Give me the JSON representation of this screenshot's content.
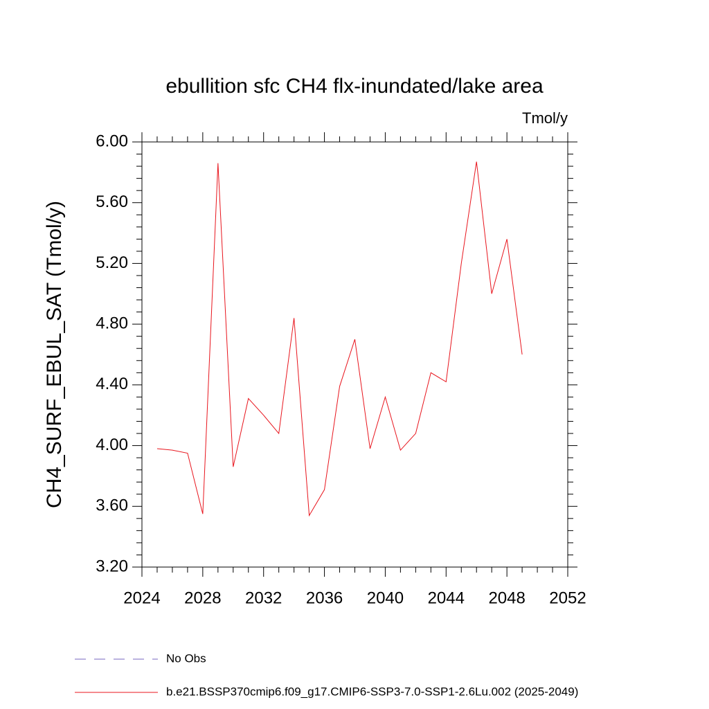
{
  "chart_data": {
    "type": "line",
    "title": "ebullition sfc CH4 flx-inundated/lake area",
    "subtitle": "Tmol/y",
    "y_label": "CH4_SURF_EBUL_SAT  (Tmol/y)",
    "x": [
      2025,
      2026,
      2027,
      2028,
      2029,
      2030,
      2031,
      2032,
      2033,
      2034,
      2035,
      2036,
      2037,
      2038,
      2039,
      2040,
      2041,
      2042,
      2043,
      2044,
      2045,
      2046,
      2047,
      2048,
      2049
    ],
    "series": [
      {
        "name": "b.e21.BSSP370cmip6.f09_g17.CMIP6-SSP3-7.0-SSP1-2.6Lu.002 (2025-2049)",
        "color": "#e8141c",
        "values": [
          3.98,
          3.97,
          3.95,
          3.55,
          5.86,
          3.86,
          4.31,
          4.2,
          4.08,
          4.84,
          3.54,
          3.71,
          4.39,
          4.7,
          3.98,
          4.32,
          3.97,
          4.08,
          4.48,
          4.42,
          5.2,
          5.87,
          5.0,
          5.36,
          4.6
        ]
      }
    ],
    "reference_lines": [
      {
        "name": "No Obs",
        "color": "#7566c0",
        "dashed": true
      }
    ],
    "xlim": [
      2024,
      2052
    ],
    "xticks": [
      2024,
      2028,
      2032,
      2036,
      2040,
      2044,
      2048,
      2052
    ],
    "ylim": [
      3.2,
      6.0
    ],
    "yticks": [
      {
        "value": 3.2,
        "label": "3.20"
      },
      {
        "value": 3.6,
        "label": "3.60"
      },
      {
        "value": 4.0,
        "label": "4.00"
      },
      {
        "value": 4.4,
        "label": "4.40"
      },
      {
        "value": 4.8,
        "label": "4.80"
      },
      {
        "value": 5.2,
        "label": "5.20"
      },
      {
        "value": 5.6,
        "label": "5.60"
      },
      {
        "value": 6.0,
        "label": "6.00"
      }
    ],
    "grid": false
  }
}
